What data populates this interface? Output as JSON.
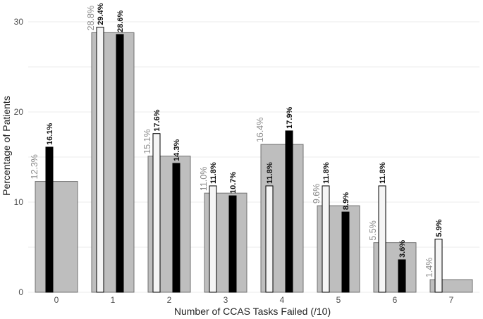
{
  "chart_data": {
    "type": "bar",
    "title": "",
    "xlabel": "Number of CCAS Tasks Failed (/10)",
    "ylabel": "Percentage of Patients",
    "categories": [
      "0",
      "1",
      "2",
      "3",
      "4",
      "5",
      "6",
      "7"
    ],
    "ylim": [
      0,
      31
    ],
    "yticks": [
      0,
      10,
      20,
      30
    ],
    "grid": true,
    "legend": "none",
    "series": [
      {
        "id": "overall",
        "values": [
          12.3,
          28.8,
          15.1,
          11.0,
          16.4,
          9.6,
          5.5,
          1.4
        ],
        "labels": [
          "12.3%",
          "28.8%",
          "15.1%",
          "11.0%",
          "16.4%",
          "9.6%",
          "5.5%",
          "1.4%"
        ],
        "color": "#bebebe",
        "edge": "#707070"
      },
      {
        "id": "white",
        "values": [
          null,
          29.4,
          17.6,
          11.8,
          11.8,
          11.8,
          11.8,
          5.9
        ],
        "labels": [
          "",
          "29.4%",
          "17.6%",
          "11.8%",
          "11.8%",
          "11.8%",
          "11.8%",
          "5.9%"
        ],
        "color": "#f5f5f5",
        "edge": "#000000"
      },
      {
        "id": "black",
        "values": [
          16.1,
          28.6,
          14.3,
          10.7,
          17.9,
          8.9,
          3.6,
          null
        ],
        "labels": [
          "16.1%",
          "28.6%",
          "14.3%",
          "10.7%",
          "17.9%",
          "8.9%",
          "3.6%",
          ""
        ],
        "color": "#000000",
        "edge": "#000000"
      }
    ]
  }
}
